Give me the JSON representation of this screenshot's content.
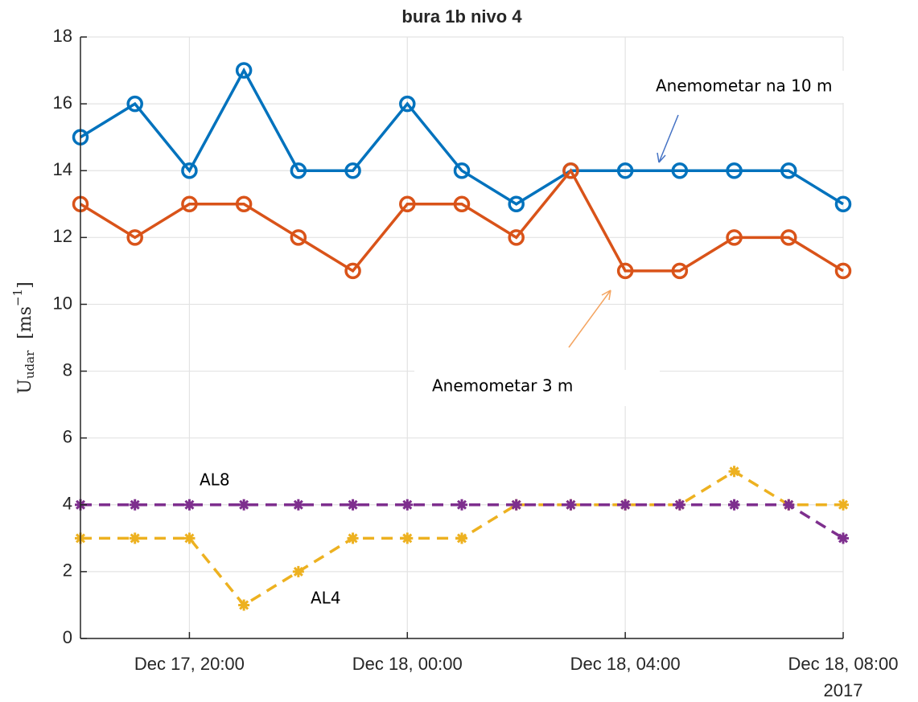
{
  "chart_data": {
    "type": "line",
    "title": "bura 1b nivo 4",
    "ylabel": {
      "symbol": "U",
      "subscript": "udar",
      "unit_open": "[ms",
      "exponent": "−1",
      "unit_close": "]"
    },
    "x": [
      "2017-12-17 18:00",
      "2017-12-17 19:00",
      "2017-12-17 20:00",
      "2017-12-17 21:00",
      "2017-12-17 22:00",
      "2017-12-17 23:00",
      "2017-12-18 00:00",
      "2017-12-18 01:00",
      "2017-12-18 02:00",
      "2017-12-18 03:00",
      "2017-12-18 04:00",
      "2017-12-18 05:00",
      "2017-12-18 06:00",
      "2017-12-18 07:00",
      "2017-12-18 08:00"
    ],
    "xlim": [
      "2017-12-17 18:00",
      "2017-12-18 08:00"
    ],
    "xticks": [
      {
        "value": "2017-12-17 20:00",
        "label": "Dec 17, 20:00"
      },
      {
        "value": "2017-12-18 00:00",
        "label": "Dec 18, 00:00"
      },
      {
        "value": "2017-12-18 04:00",
        "label": "Dec 18, 04:00"
      },
      {
        "value": "2017-12-18 08:00",
        "label": "Dec 18, 08:00"
      }
    ],
    "x_year_label": "2017",
    "ylim": [
      0,
      18
    ],
    "yticks": [
      0,
      2,
      4,
      6,
      8,
      10,
      12,
      14,
      16,
      18
    ],
    "grid": true,
    "series": [
      {
        "name": "Anemometar na 10 m",
        "color": "#0072BD",
        "marker": "circle",
        "dashed": false,
        "values": [
          15,
          16,
          14,
          17,
          14,
          14,
          16,
          14,
          13,
          14,
          14,
          14,
          14,
          14,
          13
        ]
      },
      {
        "name": "Anemometar 3 m",
        "color": "#D95319",
        "marker": "circle",
        "dashed": false,
        "values": [
          13,
          12,
          13,
          13,
          12,
          11,
          13,
          13,
          12,
          14,
          11,
          11,
          12,
          12,
          11
        ]
      },
      {
        "name": "AL4",
        "color": "#EDB120",
        "marker": "asterisk",
        "dashed": true,
        "values": [
          3,
          3,
          3,
          1,
          2,
          3,
          3,
          3,
          4,
          4,
          4,
          4,
          5,
          4,
          4
        ]
      },
      {
        "name": "AL8",
        "color": "#7E2F8E",
        "marker": "asterisk",
        "dashed": true,
        "values": [
          4,
          4,
          4,
          4,
          4,
          4,
          4,
          4,
          4,
          4,
          4,
          4,
          4,
          4,
          3
        ]
      }
    ]
  }
}
